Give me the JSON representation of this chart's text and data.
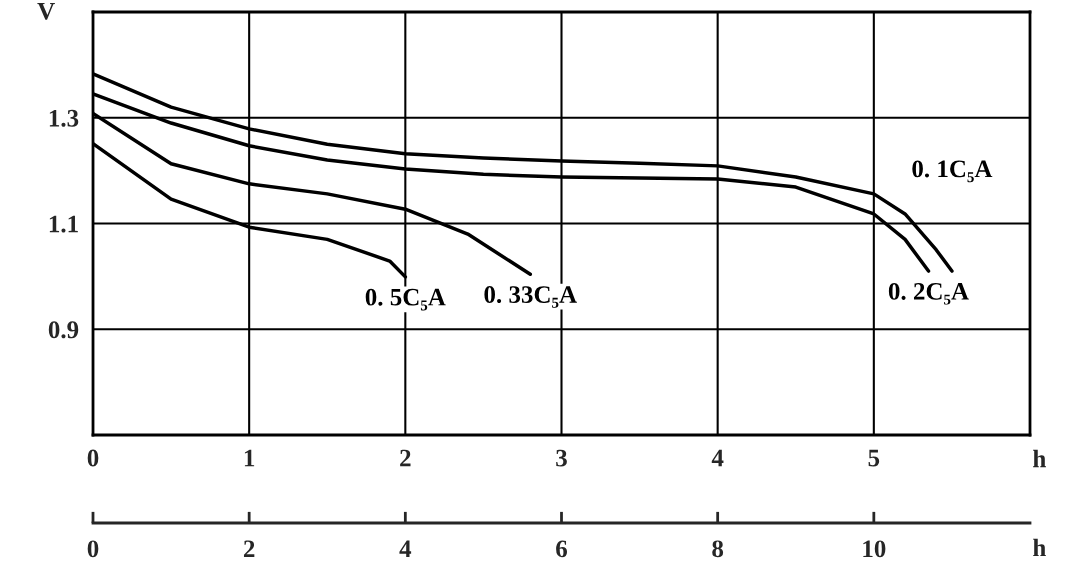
{
  "chart_data": {
    "type": "line",
    "ylabel": "V",
    "xlabel": "h",
    "x2label": "h",
    "xlim": [
      0,
      6
    ],
    "xticks": [
      0,
      1,
      2,
      3,
      4,
      5
    ],
    "x2lim": [
      0,
      12
    ],
    "x2ticks": [
      0,
      2,
      4,
      6,
      8,
      10
    ],
    "ylim": [
      0.7,
      1.5
    ],
    "yticks": [
      0.9,
      1.1,
      1.3
    ],
    "grid": true,
    "legend": false,
    "marker": "none",
    "line_style": "solid",
    "series": [
      {
        "name": "0. 1C₅A",
        "color": "#000000",
        "x": [
          0,
          0.5,
          1,
          1.5,
          2,
          2.5,
          3,
          3.5,
          4,
          4.5,
          5,
          5.2,
          5.4,
          5.5
        ],
        "values": [
          1.383,
          1.32,
          1.279,
          1.25,
          1.232,
          1.224,
          1.218,
          1.214,
          1.209,
          1.188,
          1.156,
          1.118,
          1.05,
          1.01
        ]
      },
      {
        "name": "0. 2C₅A",
        "color": "#000000",
        "x": [
          0,
          0.5,
          1,
          1.5,
          2,
          2.5,
          3,
          3.5,
          4,
          4.5,
          5,
          5.2,
          5.35
        ],
        "values": [
          1.345,
          1.29,
          1.247,
          1.22,
          1.203,
          1.193,
          1.188,
          1.186,
          1.184,
          1.169,
          1.118,
          1.07,
          1.01
        ]
      },
      {
        "name": "0. 33C₅A",
        "color": "#000000",
        "x": [
          0,
          0.5,
          1,
          1.5,
          2,
          2.4,
          2.8
        ],
        "values": [
          1.308,
          1.213,
          1.175,
          1.156,
          1.127,
          1.08,
          1.004
        ]
      },
      {
        "name": "0. 5C₅A",
        "color": "#000000",
        "x": [
          0,
          0.5,
          1,
          1.5,
          1.9,
          2
        ],
        "values": [
          1.251,
          1.146,
          1.093,
          1.07,
          1.029,
          0.999
        ]
      }
    ]
  }
}
